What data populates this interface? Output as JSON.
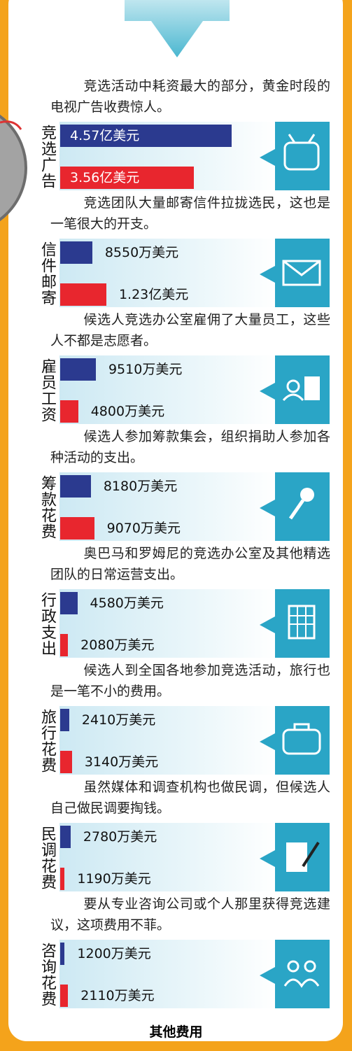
{
  "chart_data": [
    {
      "type": "bar",
      "description": "竞选活动中耗资最大的部分，黄金时段的电视广告收费惊人。",
      "category": "竞选广告",
      "series": [
        {
          "color": "#2b3a8f",
          "values": [
            45700
          ],
          "value_labels": [
            "4.57亿美元"
          ]
        },
        {
          "color": "#e8262e",
          "values": [
            35600
          ],
          "value_labels": [
            "3.56亿美元"
          ]
        }
      ]
    },
    {
      "type": "bar",
      "description": "竞选团队大量邮寄信件拉拢选民，这也是一笔很大的开支。",
      "category": "信件邮寄",
      "series": [
        {
          "color": "#2b3a8f",
          "values": [
            8550
          ],
          "value_labels": [
            "8550万美元"
          ]
        },
        {
          "color": "#e8262e",
          "values": [
            12300
          ],
          "value_labels": [
            "1.23亿美元"
          ]
        }
      ]
    },
    {
      "type": "bar",
      "description": "候选人竞选办公室雇佣了大量员工，这些人不都是志愿者。",
      "category": "雇员工资",
      "series": [
        {
          "color": "#2b3a8f",
          "values": [
            9510
          ],
          "value_labels": [
            "9510万美元"
          ]
        },
        {
          "color": "#e8262e",
          "values": [
            4800
          ],
          "value_labels": [
            "4800万美元"
          ]
        }
      ]
    },
    {
      "type": "bar",
      "description": "候选人参加筹款集会，组织捐助人参加各种活动的支出。",
      "category": "筹款花费",
      "series": [
        {
          "color": "#2b3a8f",
          "values": [
            8180
          ],
          "value_labels": [
            "8180万美元"
          ]
        },
        {
          "color": "#e8262e",
          "values": [
            9070
          ],
          "value_labels": [
            "9070万美元"
          ]
        }
      ]
    },
    {
      "type": "bar",
      "description": "奥巴马和罗姆尼的竞选办公室及其他精选团队的日常运营支出。",
      "category": "行政支出",
      "series": [
        {
          "color": "#2b3a8f",
          "values": [
            4580
          ],
          "value_labels": [
            "4580万美元"
          ]
        },
        {
          "color": "#e8262e",
          "values": [
            2080
          ],
          "value_labels": [
            "2080万美元"
          ]
        }
      ]
    },
    {
      "type": "bar",
      "description": "候选人到全国各地参加竞选活动，旅行也是一笔不小的费用。",
      "category": "旅行花费",
      "series": [
        {
          "color": "#2b3a8f",
          "values": [
            2410
          ],
          "value_labels": [
            "2410万美元"
          ]
        },
        {
          "color": "#e8262e",
          "values": [
            3140
          ],
          "value_labels": [
            "3140万美元"
          ]
        }
      ]
    },
    {
      "type": "bar",
      "description": "虽然媒体和调查机构也做民调，但候选人自己做民调要掏钱。",
      "category": "民调花费",
      "series": [
        {
          "color": "#2b3a8f",
          "values": [
            2780
          ],
          "value_labels": [
            "2780万美元"
          ]
        },
        {
          "color": "#e8262e",
          "values": [
            1190
          ],
          "value_labels": [
            "1190万美元"
          ]
        }
      ]
    },
    {
      "type": "bar",
      "description": "要从专业咨询公司或个人那里获得竞选建议，这项费用不菲。",
      "category": "咨询花费",
      "series": [
        {
          "color": "#2b3a8f",
          "values": [
            1200
          ],
          "value_labels": [
            "1200万美元"
          ]
        },
        {
          "color": "#e8262e",
          "values": [
            2110
          ],
          "value_labels": [
            "2110万美元"
          ]
        }
      ]
    }
  ],
  "footer": "其他费用"
}
